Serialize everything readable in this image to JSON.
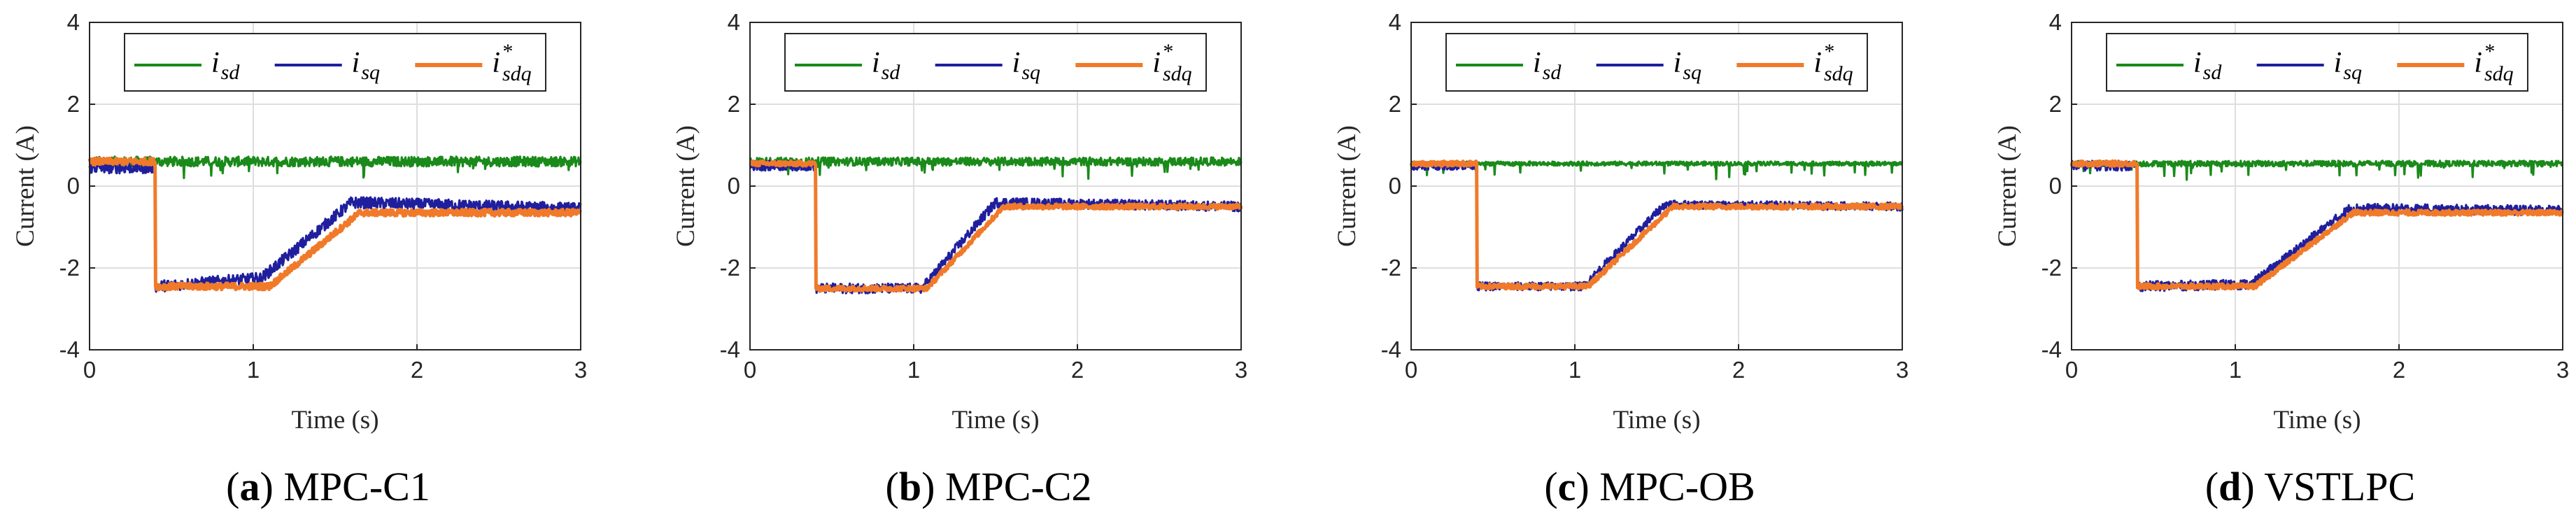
{
  "chart_data": [
    {
      "type": "line",
      "caption_letter": "a",
      "caption_text": "MPC-C1",
      "xlabel": "Time (s)",
      "ylabel": "Current (A)",
      "xlim": [
        0,
        3
      ],
      "ylim": [
        -4,
        4
      ],
      "xticks": [
        "0",
        "1",
        "2",
        "3"
      ],
      "yticks": [
        "4",
        "2",
        "0",
        "-2",
        "-4"
      ],
      "grid": true,
      "legend_position": "top",
      "series": [
        {
          "name": "i",
          "sub": "sd",
          "sup": "",
          "color": "#1a8a1a",
          "key": "isd",
          "x": [
            0,
            3
          ],
          "y": [
            0.6,
            0.6
          ],
          "noise": 0.12
        },
        {
          "name": "i",
          "sub": "sq",
          "sup": "",
          "color": "#1f1f9e",
          "key": "isq",
          "x": [
            0,
            0.4,
            0.4,
            1.05,
            1.6,
            3
          ],
          "y": [
            0.45,
            0.45,
            -2.45,
            -2.25,
            -0.4,
            -0.55
          ],
          "noise": 0.14
        },
        {
          "name": "i",
          "sub": "sdq",
          "sup": "*",
          "color": "#f07a2a",
          "key": "ref",
          "x": [
            0,
            0.4,
            0.4,
            1.1,
            1.65,
            3
          ],
          "y": [
            0.6,
            0.6,
            -2.45,
            -2.45,
            -0.65,
            -0.65
          ],
          "noise": 0.08
        }
      ]
    },
    {
      "type": "line",
      "caption_letter": "b",
      "caption_text": "MPC-C2",
      "xlabel": "Time (s)",
      "ylabel": "Current (A)",
      "xlim": [
        0,
        3
      ],
      "ylim": [
        -4,
        4
      ],
      "xticks": [
        "0",
        "1",
        "2",
        "3"
      ],
      "yticks": [
        "4",
        "2",
        "0",
        "-2",
        "-4"
      ],
      "grid": true,
      "legend_position": "top",
      "series": [
        {
          "name": "i",
          "sub": "sd",
          "sup": "",
          "color": "#1a8a1a",
          "key": "isd",
          "x": [
            0,
            3
          ],
          "y": [
            0.6,
            0.6
          ],
          "noise": 0.1
        },
        {
          "name": "i",
          "sub": "sq",
          "sup": "",
          "color": "#1f1f9e",
          "key": "isq",
          "x": [
            0,
            0.4,
            0.4,
            1.05,
            1.5,
            3
          ],
          "y": [
            0.5,
            0.5,
            -2.5,
            -2.5,
            -0.4,
            -0.5
          ],
          "noise": 0.12
        },
        {
          "name": "i",
          "sub": "sdq",
          "sup": "*",
          "color": "#f07a2a",
          "key": "ref",
          "x": [
            0,
            0.4,
            0.4,
            1.08,
            1.55,
            3
          ],
          "y": [
            0.55,
            0.55,
            -2.5,
            -2.5,
            -0.5,
            -0.5
          ],
          "noise": 0.06
        }
      ]
    },
    {
      "type": "line",
      "caption_letter": "c",
      "caption_text": "MPC-OB",
      "xlabel": "Time (s)",
      "ylabel": "Current (A)",
      "xlim": [
        0,
        3
      ],
      "ylim": [
        -4,
        4
      ],
      "xticks": [
        "0",
        "1",
        "2",
        "3"
      ],
      "yticks": [
        "4",
        "2",
        "0",
        "-2",
        "-4"
      ],
      "grid": true,
      "legend_position": "top",
      "series": [
        {
          "name": "i",
          "sub": "sd",
          "sup": "",
          "color": "#1a8a1a",
          "key": "isd",
          "x": [
            0,
            3
          ],
          "y": [
            0.55,
            0.55
          ],
          "noise": 0.05
        },
        {
          "name": "i",
          "sub": "sq",
          "sup": "",
          "color": "#1f1f9e",
          "key": "isq",
          "x": [
            0,
            0.4,
            0.4,
            1.05,
            1.55,
            3
          ],
          "y": [
            0.5,
            0.5,
            -2.45,
            -2.45,
            -0.45,
            -0.5
          ],
          "noise": 0.1
        },
        {
          "name": "i",
          "sub": "sdq",
          "sup": "*",
          "color": "#f07a2a",
          "key": "ref",
          "x": [
            0,
            0.4,
            0.4,
            1.08,
            1.6,
            3
          ],
          "y": [
            0.55,
            0.55,
            -2.45,
            -2.45,
            -0.5,
            -0.5
          ],
          "noise": 0.06
        }
      ]
    },
    {
      "type": "line",
      "caption_letter": "d",
      "caption_text": "VSTLPC",
      "xlabel": "Time (s)",
      "ylabel": "Current (A)",
      "xlim": [
        0,
        3
      ],
      "ylim": [
        -4,
        4
      ],
      "xticks": [
        "0",
        "1",
        "2",
        "3"
      ],
      "yticks": [
        "4",
        "2",
        "0",
        "-2",
        "-4"
      ],
      "grid": true,
      "legend_position": "top",
      "series": [
        {
          "name": "i",
          "sub": "sd",
          "sup": "",
          "color": "#1a8a1a",
          "key": "isd",
          "x": [
            0,
            3
          ],
          "y": [
            0.55,
            0.55
          ],
          "noise": 0.07
        },
        {
          "name": "i",
          "sub": "sq",
          "sup": "",
          "color": "#1f1f9e",
          "key": "isq",
          "x": [
            0,
            0.4,
            0.4,
            1.1,
            1.7,
            3
          ],
          "y": [
            0.5,
            0.5,
            -2.45,
            -2.4,
            -0.55,
            -0.6
          ],
          "noise": 0.12
        },
        {
          "name": "i",
          "sub": "sdq",
          "sup": "*",
          "color": "#f07a2a",
          "key": "ref",
          "x": [
            0,
            0.4,
            0.4,
            1.12,
            1.72,
            3
          ],
          "y": [
            0.55,
            0.55,
            -2.45,
            -2.45,
            -0.65,
            -0.65
          ],
          "noise": 0.06
        }
      ]
    }
  ]
}
